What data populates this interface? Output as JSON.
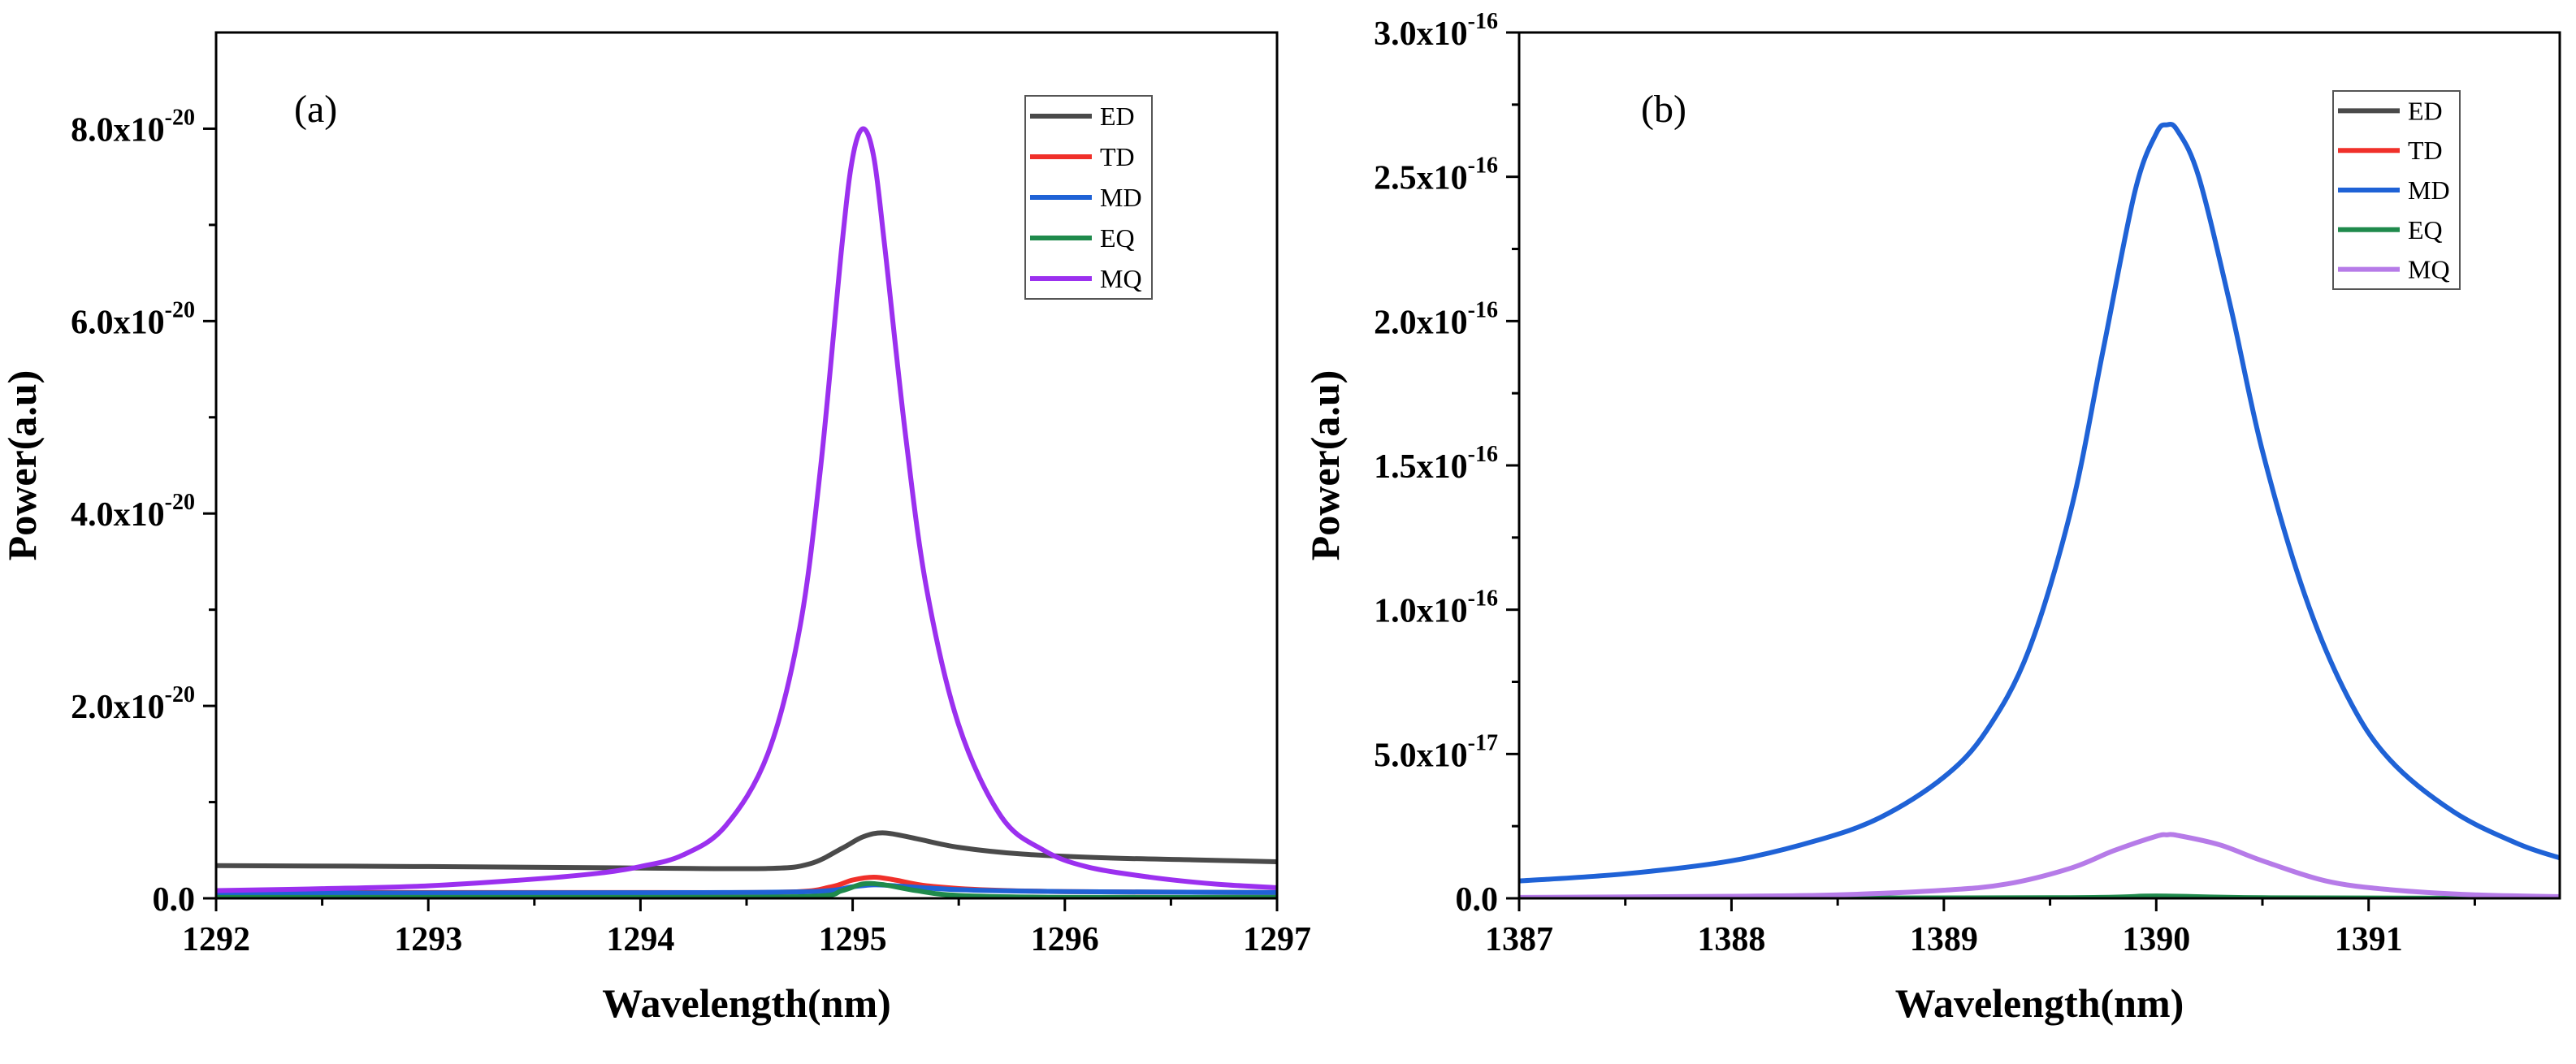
{
  "colors": {
    "ED": "#4a4a4a",
    "TD": "#f0302a",
    "MD": "#1f62d6",
    "EQ": "#1f8a4c",
    "MQ_a": "#9b30ef",
    "MQ_b": "#b67be8"
  },
  "chart_data": [
    {
      "type": "line",
      "panel_label": "(a)",
      "xlabel": "Wavelength(nm)",
      "ylabel": "Power(a.u)",
      "xlim": [
        1292,
        1297
      ],
      "ylim": [
        0,
        9e-20
      ],
      "x_ticks": [
        1292,
        1293,
        1294,
        1295,
        1296,
        1297
      ],
      "x_tick_labels": [
        "1292",
        "1293",
        "1294",
        "1295",
        "1296",
        "1297"
      ],
      "y_ticks": [
        0,
        2e-20,
        4e-20,
        6e-20,
        8e-20
      ],
      "y_tick_labels": [
        {
          "main": "0.0",
          "exp": ""
        },
        {
          "main": "2.0x10",
          "exp": "-20"
        },
        {
          "main": "4.0x10",
          "exp": "-20"
        },
        {
          "main": "6.0x10",
          "exp": "-20"
        },
        {
          "main": "8.0x10",
          "exp": "-20"
        }
      ],
      "legend": [
        "ED",
        "TD",
        "MD",
        "EQ",
        "MQ"
      ],
      "series": [
        {
          "name": "ED",
          "color_key": "ED",
          "x": [
            1292.0,
            1293.0,
            1294.0,
            1294.6,
            1294.8,
            1294.95,
            1295.05,
            1295.15,
            1295.3,
            1295.5,
            1295.8,
            1296.2,
            1296.6,
            1297.0
          ],
          "y": [
            3.4e-21,
            3.3e-21,
            3.15e-21,
            3.1e-21,
            3.6e-21,
            5.2e-21,
            6.4e-21,
            6.8e-21,
            6.2e-21,
            5.3e-21,
            4.6e-21,
            4.2e-21,
            4e-21,
            3.8e-21
          ]
        },
        {
          "name": "TD",
          "color_key": "TD",
          "x": [
            1292.0,
            1294.0,
            1294.7,
            1294.9,
            1295.0,
            1295.1,
            1295.2,
            1295.35,
            1295.6,
            1296.0,
            1297.0
          ],
          "y": [
            6e-22,
            6e-22,
            6.5e-22,
            1.2e-21,
            1.9e-21,
            2.2e-21,
            1.9e-21,
            1.3e-21,
            9e-22,
            7e-22,
            6e-22
          ]
        },
        {
          "name": "MD",
          "color_key": "MD",
          "x": [
            1292.0,
            1294.0,
            1294.8,
            1295.0,
            1295.1,
            1295.2,
            1295.5,
            1296.0,
            1297.0
          ],
          "y": [
            5.5e-22,
            5.8e-22,
            7e-22,
            1.2e-21,
            1.4e-21,
            1.3e-21,
            9e-22,
            7e-22,
            6e-22
          ]
        },
        {
          "name": "EQ",
          "color_key": "EQ",
          "x": [
            1292.0,
            1294.0,
            1294.8,
            1294.95,
            1295.05,
            1295.15,
            1295.3,
            1295.5,
            1296.0,
            1297.0
          ],
          "y": [
            1e-22,
            1e-22,
            2e-22,
            8e-22,
            1.5e-21,
            1.4e-21,
            8e-22,
            3e-22,
            1e-22,
            1e-22
          ]
        },
        {
          "name": "MQ",
          "color_key": "MQ_a",
          "x": [
            1292.0,
            1292.5,
            1293.0,
            1293.5,
            1293.8,
            1294.0,
            1294.2,
            1294.4,
            1294.6,
            1294.75,
            1294.85,
            1294.95,
            1295.0,
            1295.05,
            1295.1,
            1295.15,
            1295.25,
            1295.35,
            1295.5,
            1295.7,
            1295.9,
            1296.1,
            1296.4,
            1296.7,
            1297.0
          ],
          "y": [
            8e-22,
            1e-21,
            1.3e-21,
            2e-21,
            2.6e-21,
            3.3e-21,
            4.5e-21,
            7.5e-21,
            1.5e-20,
            2.8e-20,
            4.5e-20,
            6.8e-20,
            7.7e-20,
            8e-20,
            7.7e-20,
            6.8e-20,
            4.8e-20,
            3.2e-20,
            1.8e-20,
            8.5e-21,
            5e-21,
            3.3e-21,
            2.2e-21,
            1.5e-21,
            1.1e-21
          ]
        }
      ]
    },
    {
      "type": "line",
      "panel_label": "(b)",
      "xlabel": "Wavelength(nm)",
      "ylabel": "Power(a.u)",
      "xlim": [
        1387,
        1391.9
      ],
      "ylim": [
        0,
        3e-16
      ],
      "x_ticks": [
        1387,
        1388,
        1389,
        1390,
        1391
      ],
      "x_tick_labels": [
        "1387",
        "1388",
        "1389",
        "1390",
        "1391"
      ],
      "y_ticks": [
        0,
        5e-17,
        1e-16,
        1.5e-16,
        2e-16,
        2.5e-16,
        3e-16
      ],
      "y_tick_labels": [
        {
          "main": "0.0",
          "exp": ""
        },
        {
          "main": "5.0x10",
          "exp": "-17"
        },
        {
          "main": "1.0x10",
          "exp": "-16"
        },
        {
          "main": "1.5x10",
          "exp": "-16"
        },
        {
          "main": "2.0x10",
          "exp": "-16"
        },
        {
          "main": "2.5x10",
          "exp": "-16"
        },
        {
          "main": "3.0x10",
          "exp": "-16"
        }
      ],
      "legend": [
        "ED",
        "TD",
        "MD",
        "EQ",
        "MQ"
      ],
      "series": [
        {
          "name": "ED",
          "color_key": "ED",
          "x": [
            1387.0,
            1391.9
          ],
          "y": [
            0,
            0
          ]
        },
        {
          "name": "TD",
          "color_key": "TD",
          "x": [
            1387.0,
            1391.9
          ],
          "y": [
            0,
            0
          ]
        },
        {
          "name": "MD",
          "color_key": "MD",
          "x": [
            1387.0,
            1387.5,
            1388.0,
            1388.4,
            1388.7,
            1389.0,
            1389.2,
            1389.4,
            1389.6,
            1389.75,
            1389.9,
            1390.0,
            1390.05,
            1390.1,
            1390.2,
            1390.35,
            1390.5,
            1390.7,
            1390.9,
            1391.1,
            1391.4,
            1391.7,
            1391.9
          ],
          "y": [
            6e-18,
            8.5e-18,
            1.3e-17,
            2e-17,
            2.8e-17,
            4.2e-17,
            5.8e-17,
            8.6e-17,
            1.35e-16,
            1.9e-16,
            2.45e-16,
            2.65e-16,
            2.68e-16,
            2.66e-16,
            2.5e-16,
            2.05e-16,
            1.55e-16,
            1.05e-16,
            7e-17,
            4.8e-17,
            3e-17,
            1.9e-17,
            1.4e-17
          ]
        },
        {
          "name": "EQ",
          "color_key": "EQ",
          "x": [
            1387.0,
            1389.5,
            1390.0,
            1390.5,
            1391.9
          ],
          "y": [
            0,
            2e-19,
            8e-19,
            2e-19,
            0
          ]
        },
        {
          "name": "MQ",
          "color_key": "MQ_b",
          "x": [
            1387.0,
            1388.0,
            1388.5,
            1389.0,
            1389.3,
            1389.6,
            1389.8,
            1390.0,
            1390.05,
            1390.1,
            1390.3,
            1390.5,
            1390.8,
            1391.1,
            1391.5,
            1391.9
          ],
          "y": [
            3e-19,
            7e-19,
            1.2e-18,
            2.8e-18,
            5e-18,
            1.05e-17,
            1.65e-17,
            2.15e-17,
            2.2e-17,
            2.18e-17,
            1.85e-17,
            1.3e-17,
            6e-18,
            3e-18,
            1.2e-18,
            6e-19
          ]
        }
      ]
    }
  ]
}
